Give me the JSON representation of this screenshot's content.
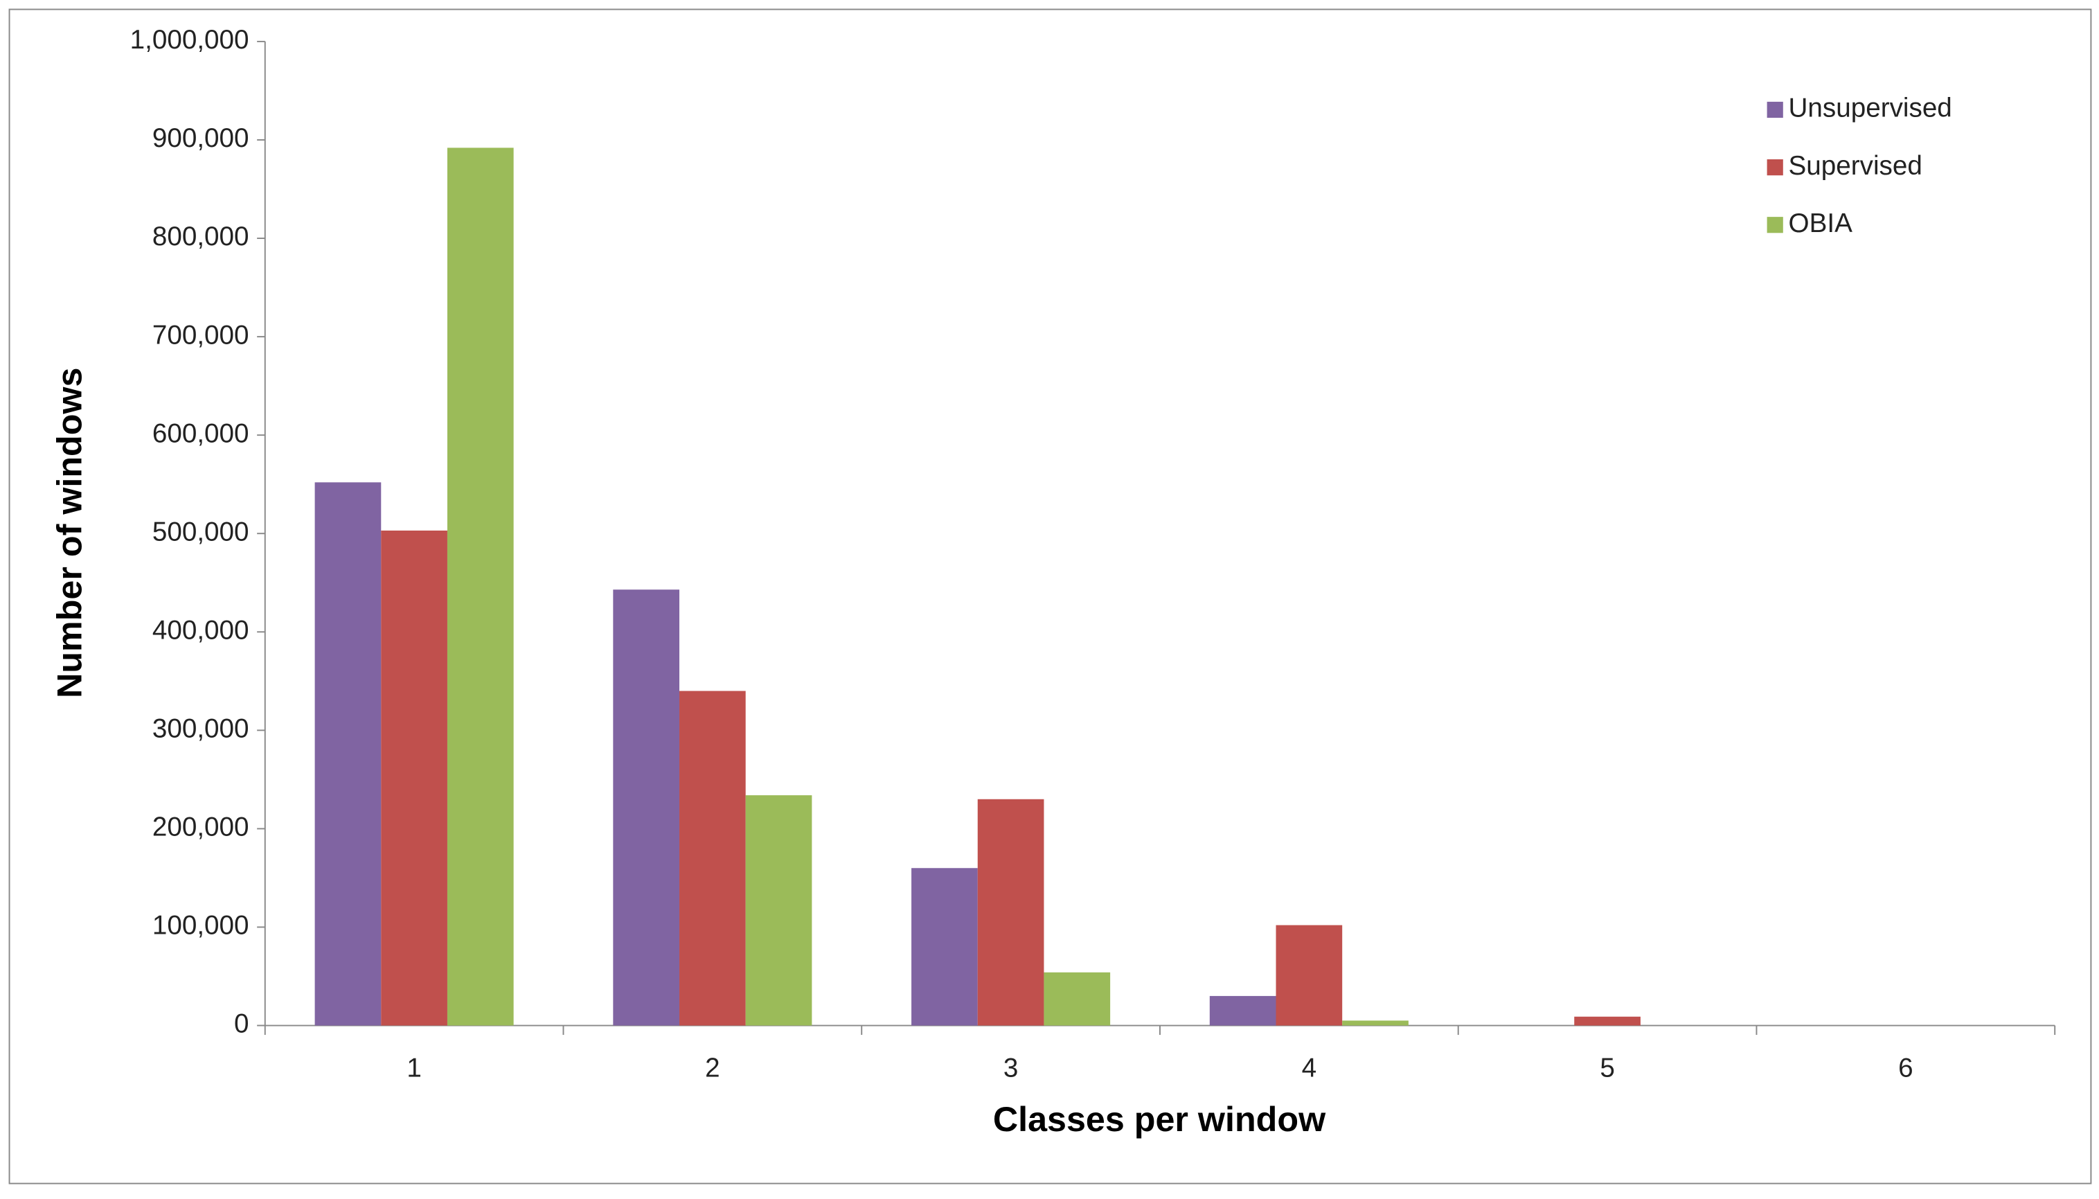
{
  "chart_data": {
    "type": "bar",
    "x_label": "Classes per window",
    "y_label": "Number of windows",
    "categories": [
      "1",
      "2",
      "3",
      "4",
      "5",
      "6"
    ],
    "series": [
      {
        "name": "Unsupervised",
        "color": "#8064a2",
        "values": [
          552000,
          443000,
          160000,
          30000,
          0,
          0
        ]
      },
      {
        "name": "Supervised",
        "color": "#c0504d",
        "values": [
          503000,
          340000,
          230000,
          102000,
          9000,
          0
        ]
      },
      {
        "name": "OBIA",
        "color": "#9bbb59",
        "values": [
          892000,
          234000,
          54000,
          5000,
          0,
          0
        ]
      }
    ],
    "ylim": [
      0,
      1000000
    ],
    "yticks": [
      0,
      {
        "value": 100000,
        "label": "100,000"
      },
      {
        "value": 200000,
        "label": "200,000"
      },
      {
        "value": 300000,
        "label": "300,000"
      },
      {
        "value": 400000,
        "label": "400,000"
      },
      {
        "value": 500000,
        "label": "500,000"
      },
      {
        "value": 600000,
        "label": "600,000"
      },
      {
        "value": 700000,
        "label": "700,000"
      },
      {
        "value": 800000,
        "label": "800,000"
      },
      {
        "value": 900000,
        "label": "900,000"
      },
      {
        "value": 1000000,
        "label": "1,000,000"
      }
    ],
    "legend": "top-right",
    "grid": false
  }
}
